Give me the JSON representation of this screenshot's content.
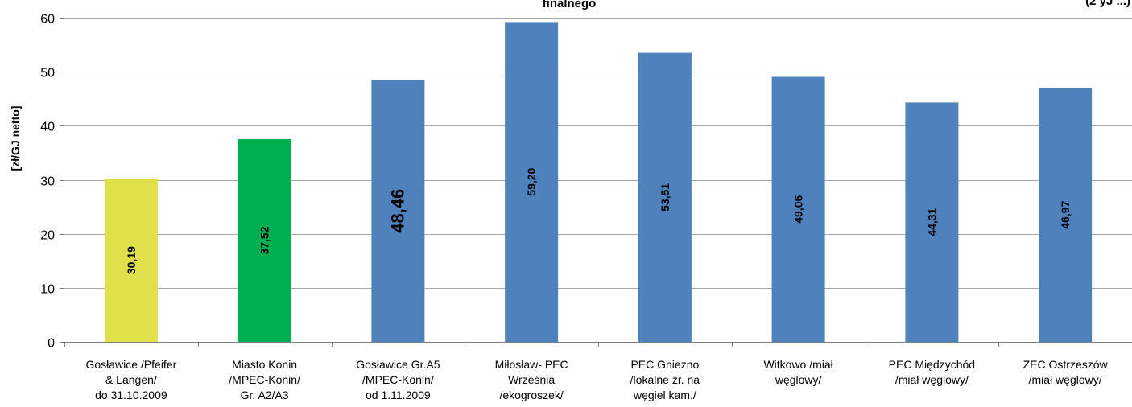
{
  "chart_data": {
    "type": "bar",
    "title": "finalnego",
    "title_right": "(2 yJ ...)",
    "ylabel": "[zł/GJ netto]",
    "ylim": [
      0,
      60
    ],
    "yticks": [
      0,
      10,
      20,
      30,
      40,
      50,
      60
    ],
    "grid": true,
    "categories": [
      [
        "Gosławice /Pfeifer",
        "& Langen/",
        "do 31.10.2009"
      ],
      [
        "Miasto Konin",
        "/MPEC-Konin/",
        "Gr. A2/A3"
      ],
      [
        "Gosławice Gr.A5",
        "/MPEC-Konin/",
        "od 1.11.2009"
      ],
      [
        "Miłosław- PEC",
        "Września",
        "/ekogroszek/"
      ],
      [
        "PEC Gniezno",
        "/lokalne źr. na",
        "węgiel kam./"
      ],
      [
        "Witkowo /miał",
        "węglowy/"
      ],
      [
        "PEC Międzychód",
        "/miał węglowy/"
      ],
      [
        "ZEC Ostrzeszów",
        "/miał węglowy/"
      ]
    ],
    "values": [
      30.19,
      37.52,
      48.46,
      59.2,
      53.51,
      49.06,
      44.31,
      46.97
    ],
    "value_labels": [
      "30,19",
      "37,52",
      "48,46",
      "59,20",
      "53,51",
      "49,06",
      "44,31",
      "46,97"
    ],
    "colors": [
      "#e0e04a",
      "#00b050",
      "#4f81bd",
      "#4f81bd",
      "#4f81bd",
      "#4f81bd",
      "#4f81bd",
      "#4f81bd"
    ],
    "gridline_color": "#a6a6a6"
  }
}
